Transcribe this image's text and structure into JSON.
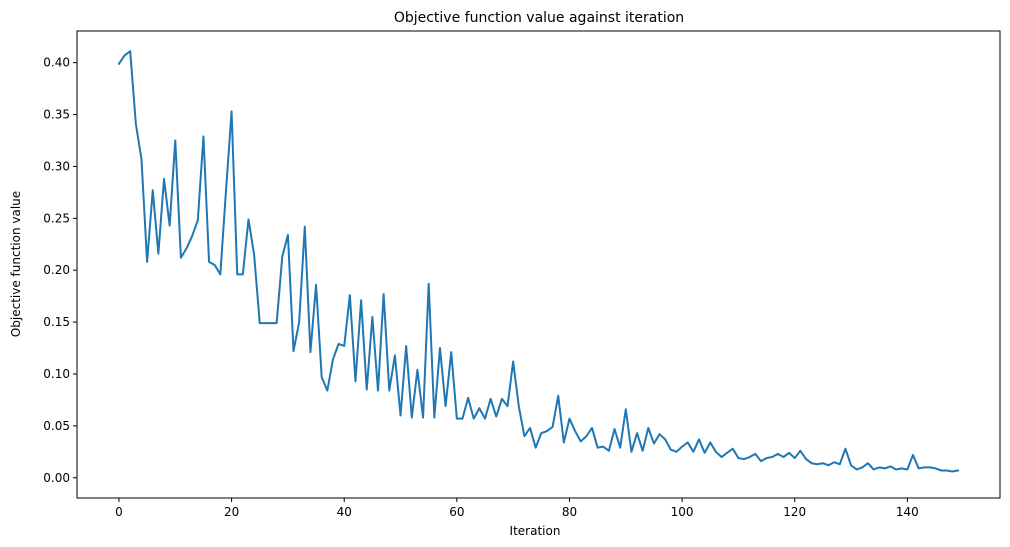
{
  "chart_data": {
    "type": "line",
    "title": "Objective function value against iteration",
    "xlabel": "Iteration",
    "ylabel": "Objective function value",
    "xlim": [
      -7.45,
      156.45
    ],
    "ylim": [
      -0.0195,
      0.4305
    ],
    "xticks": [
      0,
      20,
      40,
      60,
      80,
      100,
      120,
      140
    ],
    "xtick_labels": [
      "0",
      "20",
      "40",
      "60",
      "80",
      "100",
      "120",
      "140"
    ],
    "yticks": [
      0.0,
      0.05,
      0.1,
      0.15,
      0.2,
      0.25,
      0.3,
      0.35,
      0.4
    ],
    "ytick_labels": [
      "0.00",
      "0.05",
      "0.10",
      "0.15",
      "0.20",
      "0.25",
      "0.30",
      "0.35",
      "0.40"
    ],
    "grid": false,
    "series": [
      {
        "color": "#1f77b4",
        "x": [
          0,
          1,
          2,
          3,
          4,
          5,
          6,
          7,
          8,
          9,
          10,
          11,
          12,
          13,
          14,
          15,
          16,
          17,
          18,
          19,
          20,
          21,
          22,
          23,
          24,
          25,
          26,
          27,
          28,
          29,
          30,
          31,
          32,
          33,
          34,
          35,
          36,
          37,
          38,
          39,
          40,
          41,
          42,
          43,
          44,
          45,
          46,
          47,
          48,
          49,
          50,
          51,
          52,
          53,
          54,
          55,
          56,
          57,
          58,
          59,
          60,
          61,
          62,
          63,
          64,
          65,
          66,
          67,
          68,
          69,
          70,
          71,
          72,
          73,
          74,
          75,
          76,
          77,
          78,
          79,
          80,
          81,
          82,
          83,
          84,
          85,
          86,
          87,
          88,
          89,
          90,
          91,
          92,
          93,
          94,
          95,
          96,
          97,
          98,
          99,
          100,
          101,
          102,
          103,
          104,
          105,
          106,
          107,
          108,
          109,
          110,
          111,
          112,
          113,
          114,
          115,
          116,
          117,
          118,
          119,
          120,
          121,
          122,
          123,
          124,
          125,
          126,
          127,
          128,
          129,
          130,
          131,
          132,
          133,
          134,
          135,
          136,
          137,
          138,
          139,
          140,
          141,
          142,
          143,
          144,
          145,
          146,
          147,
          148,
          149
        ],
        "y": [
          0.399,
          0.407,
          0.411,
          0.341,
          0.307,
          0.208,
          0.277,
          0.216,
          0.288,
          0.243,
          0.325,
          0.212,
          0.221,
          0.233,
          0.248,
          0.329,
          0.208,
          0.205,
          0.196,
          0.276,
          0.353,
          0.196,
          0.196,
          0.249,
          0.215,
          0.149,
          0.149,
          0.149,
          0.149,
          0.213,
          0.234,
          0.122,
          0.15,
          0.242,
          0.121,
          0.186,
          0.097,
          0.084,
          0.114,
          0.129,
          0.127,
          0.176,
          0.093,
          0.171,
          0.085,
          0.155,
          0.084,
          0.177,
          0.084,
          0.118,
          0.06,
          0.127,
          0.058,
          0.104,
          0.058,
          0.187,
          0.058,
          0.125,
          0.069,
          0.121,
          0.057,
          0.057,
          0.077,
          0.057,
          0.067,
          0.057,
          0.076,
          0.059,
          0.076,
          0.069,
          0.112,
          0.069,
          0.04,
          0.048,
          0.029,
          0.043,
          0.045,
          0.049,
          0.079,
          0.034,
          0.057,
          0.045,
          0.035,
          0.04,
          0.048,
          0.029,
          0.03,
          0.026,
          0.047,
          0.029,
          0.066,
          0.025,
          0.043,
          0.026,
          0.048,
          0.033,
          0.042,
          0.037,
          0.027,
          0.025,
          0.03,
          0.034,
          0.025,
          0.037,
          0.024,
          0.034,
          0.025,
          0.02,
          0.024,
          0.028,
          0.019,
          0.018,
          0.02,
          0.023,
          0.016,
          0.019,
          0.02,
          0.023,
          0.02,
          0.024,
          0.019,
          0.026,
          0.018,
          0.014,
          0.013,
          0.014,
          0.012,
          0.015,
          0.013,
          0.028,
          0.012,
          0.008,
          0.01,
          0.014,
          0.008,
          0.01,
          0.009,
          0.011,
          0.008,
          0.009,
          0.008,
          0.022,
          0.009,
          0.01,
          0.01,
          0.009,
          0.007,
          0.007,
          0.006,
          0.007
        ]
      }
    ]
  }
}
